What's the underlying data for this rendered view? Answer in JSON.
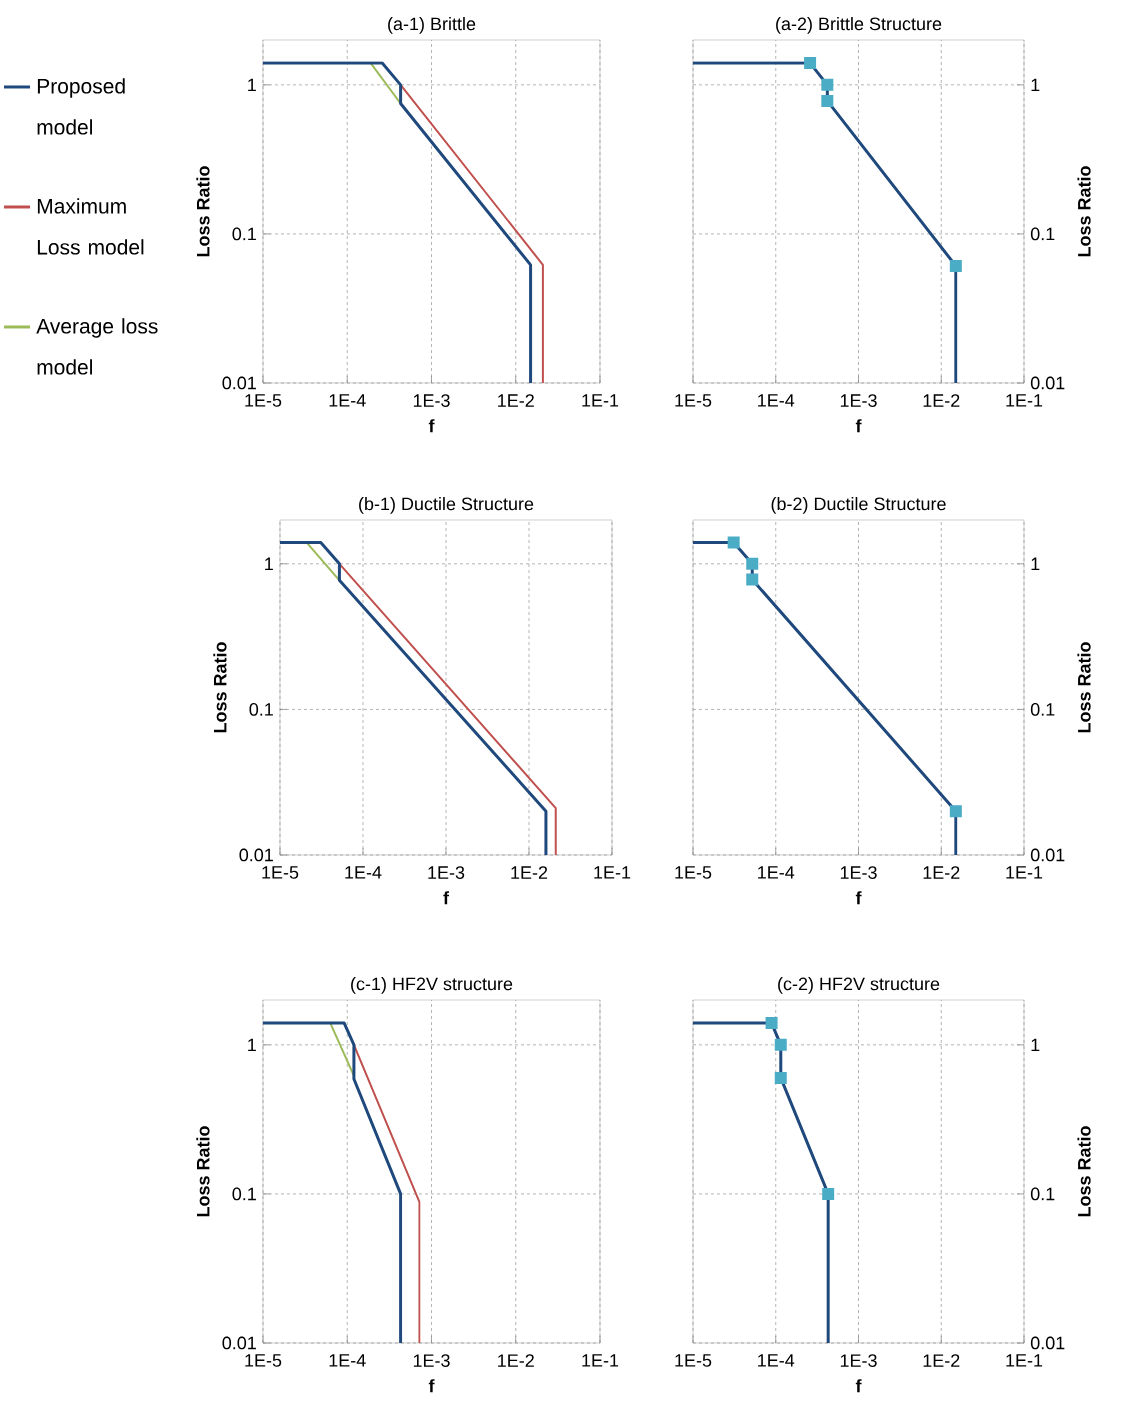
{
  "chart_data": [
    {
      "type": "line",
      "title": "(a-1) Brittle",
      "xlabel": "f",
      "ylabel": "Loss Ratio",
      "log": "xy",
      "grid": true,
      "legend": "left",
      "xlim": [
        1e-05,
        0.1
      ],
      "ylim": [
        0.01,
        2
      ],
      "xticks": [
        {
          "value": 1e-05,
          "label": "1E-5"
        },
        {
          "value": 0.0001,
          "label": "1E-4"
        },
        {
          "value": 0.001,
          "label": "1E-3"
        },
        {
          "value": 0.01,
          "label": "1E-2"
        },
        {
          "value": 0.1,
          "label": "1E-1"
        }
      ],
      "yticks": [
        0.01,
        0.1,
        1
      ],
      "series": [
        {
          "name": "Proposed model",
          "color": "#1f497d",
          "x": [
            1e-05,
            0.00026,
            0.00043,
            0.00043,
            0.015,
            0.015
          ],
          "values": [
            1.4,
            1.4,
            1,
            0.75,
            0.062,
            0.01
          ]
        },
        {
          "name": "Maximum Loss model",
          "color": "#c0504d",
          "x": [
            0.00043,
            0.021,
            0.021
          ],
          "values": [
            1,
            0.062,
            0.01
          ]
        },
        {
          "name": "Average loss model",
          "color": "#9bbb59",
          "x": [
            0.00019,
            0.00043
          ],
          "values": [
            1.4,
            0.75
          ]
        }
      ]
    },
    {
      "type": "line",
      "title": "(a-2) Brittle Structure",
      "xlabel": "f",
      "ylabel": "Loss Ratio",
      "log": "xy",
      "grid": true,
      "xlim": [
        1e-05,
        0.1
      ],
      "ylim": [
        0.01,
        2
      ],
      "xticks": [
        {
          "value": 1e-05,
          "label": "1E-5"
        },
        {
          "value": 0.0001,
          "label": "1E-4"
        },
        {
          "value": 0.001,
          "label": "1E-3"
        },
        {
          "value": 0.01,
          "label": "1E-2"
        },
        {
          "value": 0.1,
          "label": "1E-1"
        }
      ],
      "yticks": [
        0.01,
        0.1,
        1
      ],
      "series": [
        {
          "color": "#1f497d",
          "x": [
            1e-05,
            0.00026,
            0.00042,
            0.00042,
            0.015,
            0.015
          ],
          "values": [
            1.4,
            1.4,
            1,
            0.78,
            0.061,
            0.01
          ]
        },
        {
          "type": "scatter",
          "marker": "square",
          "color": "#4bacc6",
          "x": [
            0.00026,
            0.00042,
            0.00042,
            0.015
          ],
          "values": [
            1.4,
            1,
            0.78,
            0.061
          ]
        }
      ]
    },
    {
      "type": "line",
      "title": "(b-1) Ductile Structure",
      "xlabel": "f",
      "ylabel": "Loss Ratio",
      "log": "xy",
      "grid": true,
      "xlim": [
        1e-05,
        0.1
      ],
      "ylim": [
        0.01,
        2
      ],
      "xticks": [
        {
          "value": 1e-05,
          "label": "1E-5"
        },
        {
          "value": 0.0001,
          "label": "1E-4"
        },
        {
          "value": 0.001,
          "label": "1E-3"
        },
        {
          "value": 0.01,
          "label": "1E-2"
        },
        {
          "value": 0.1,
          "label": "1E-1"
        }
      ],
      "yticks": [
        0.01,
        0.1,
        1
      ],
      "series": [
        {
          "color": "#1f497d",
          "x": [
            1e-05,
            3.1e-05,
            5.2e-05,
            5.2e-05,
            0.016,
            0.016
          ],
          "values": [
            1.4,
            1.4,
            1,
            0.77,
            0.02,
            0.01
          ]
        },
        {
          "color": "#c0504d",
          "x": [
            5.2e-05,
            0.021,
            0.021
          ],
          "values": [
            1,
            0.021,
            0.01
          ]
        },
        {
          "color": "#9bbb59",
          "x": [
            2.1e-05,
            5.2e-05
          ],
          "values": [
            1.4,
            0.77
          ]
        }
      ]
    },
    {
      "type": "line",
      "title": "(b-2) Ductile Structure",
      "xlabel": "f",
      "ylabel": "Loss Ratio",
      "log": "xy",
      "grid": true,
      "xlim": [
        1e-05,
        0.1
      ],
      "ylim": [
        0.01,
        2
      ],
      "xticks": [
        {
          "value": 1e-05,
          "label": "1E-5"
        },
        {
          "value": 0.0001,
          "label": "1E-4"
        },
        {
          "value": 0.001,
          "label": "1E-3"
        },
        {
          "value": 0.01,
          "label": "1E-2"
        },
        {
          "value": 0.1,
          "label": "1E-1"
        }
      ],
      "yticks": [
        0.01,
        0.1,
        1
      ],
      "series": [
        {
          "color": "#1f497d",
          "x": [
            1e-05,
            3.1e-05,
            5.2e-05,
            5.2e-05,
            0.015,
            0.015
          ],
          "values": [
            1.4,
            1.4,
            1,
            0.78,
            0.02,
            0.01
          ]
        },
        {
          "type": "scatter",
          "marker": "square",
          "color": "#4bacc6",
          "x": [
            3.1e-05,
            5.2e-05,
            5.2e-05,
            0.015
          ],
          "values": [
            1.4,
            1,
            0.78,
            0.02
          ]
        }
      ]
    },
    {
      "type": "line",
      "title": "(c-1) HF2V structure",
      "xlabel": "f",
      "ylabel": "Loss Ratio",
      "log": "xy",
      "grid": true,
      "xlim": [
        1e-05,
        0.1
      ],
      "ylim": [
        0.01,
        2
      ],
      "xticks": [
        {
          "value": 1e-05,
          "label": "1E-5"
        },
        {
          "value": 0.0001,
          "label": "1E-4"
        },
        {
          "value": 0.001,
          "label": "1E-3"
        },
        {
          "value": 0.01,
          "label": "1E-2"
        },
        {
          "value": 0.1,
          "label": "1E-1"
        }
      ],
      "yticks": [
        0.01,
        0.1,
        1
      ],
      "series": [
        {
          "color": "#1f497d",
          "x": [
            1e-05,
            9.2e-05,
            0.00012,
            0.00012,
            0.00043,
            0.00043
          ],
          "values": [
            1.4,
            1.4,
            1,
            0.59,
            0.1,
            0.01
          ]
        },
        {
          "color": "#c0504d",
          "x": [
            0.00012,
            0.00072,
            0.00072
          ],
          "values": [
            1,
            0.088,
            0.01
          ]
        },
        {
          "color": "#9bbb59",
          "x": [
            6.3e-05,
            0.00012
          ],
          "values": [
            1.4,
            0.62
          ]
        }
      ]
    },
    {
      "type": "line",
      "title": "(c-2) HF2V structure",
      "xlabel": "f",
      "ylabel": "Loss Ratio",
      "log": "xy",
      "grid": true,
      "xlim": [
        1e-05,
        0.1
      ],
      "ylim": [
        0.01,
        2
      ],
      "xticks": [
        {
          "value": 1e-05,
          "label": "1E-5"
        },
        {
          "value": 0.0001,
          "label": "1E-4"
        },
        {
          "value": 0.001,
          "label": "1E-3"
        },
        {
          "value": 0.01,
          "label": "1E-2"
        },
        {
          "value": 0.1,
          "label": "1E-1"
        }
      ],
      "yticks": [
        0.01,
        0.1,
        1
      ],
      "series": [
        {
          "color": "#1f497d",
          "x": [
            1e-05,
            8.9e-05,
            0.000115,
            0.000115,
            0.00043,
            0.00043
          ],
          "values": [
            1.4,
            1.4,
            1,
            0.6,
            0.1,
            0.01
          ]
        },
        {
          "type": "scatter",
          "marker": "square",
          "color": "#4bacc6",
          "x": [
            8.9e-05,
            0.000115,
            0.000115,
            0.00043
          ],
          "values": [
            1.4,
            1,
            0.6,
            0.1
          ]
        }
      ]
    }
  ]
}
